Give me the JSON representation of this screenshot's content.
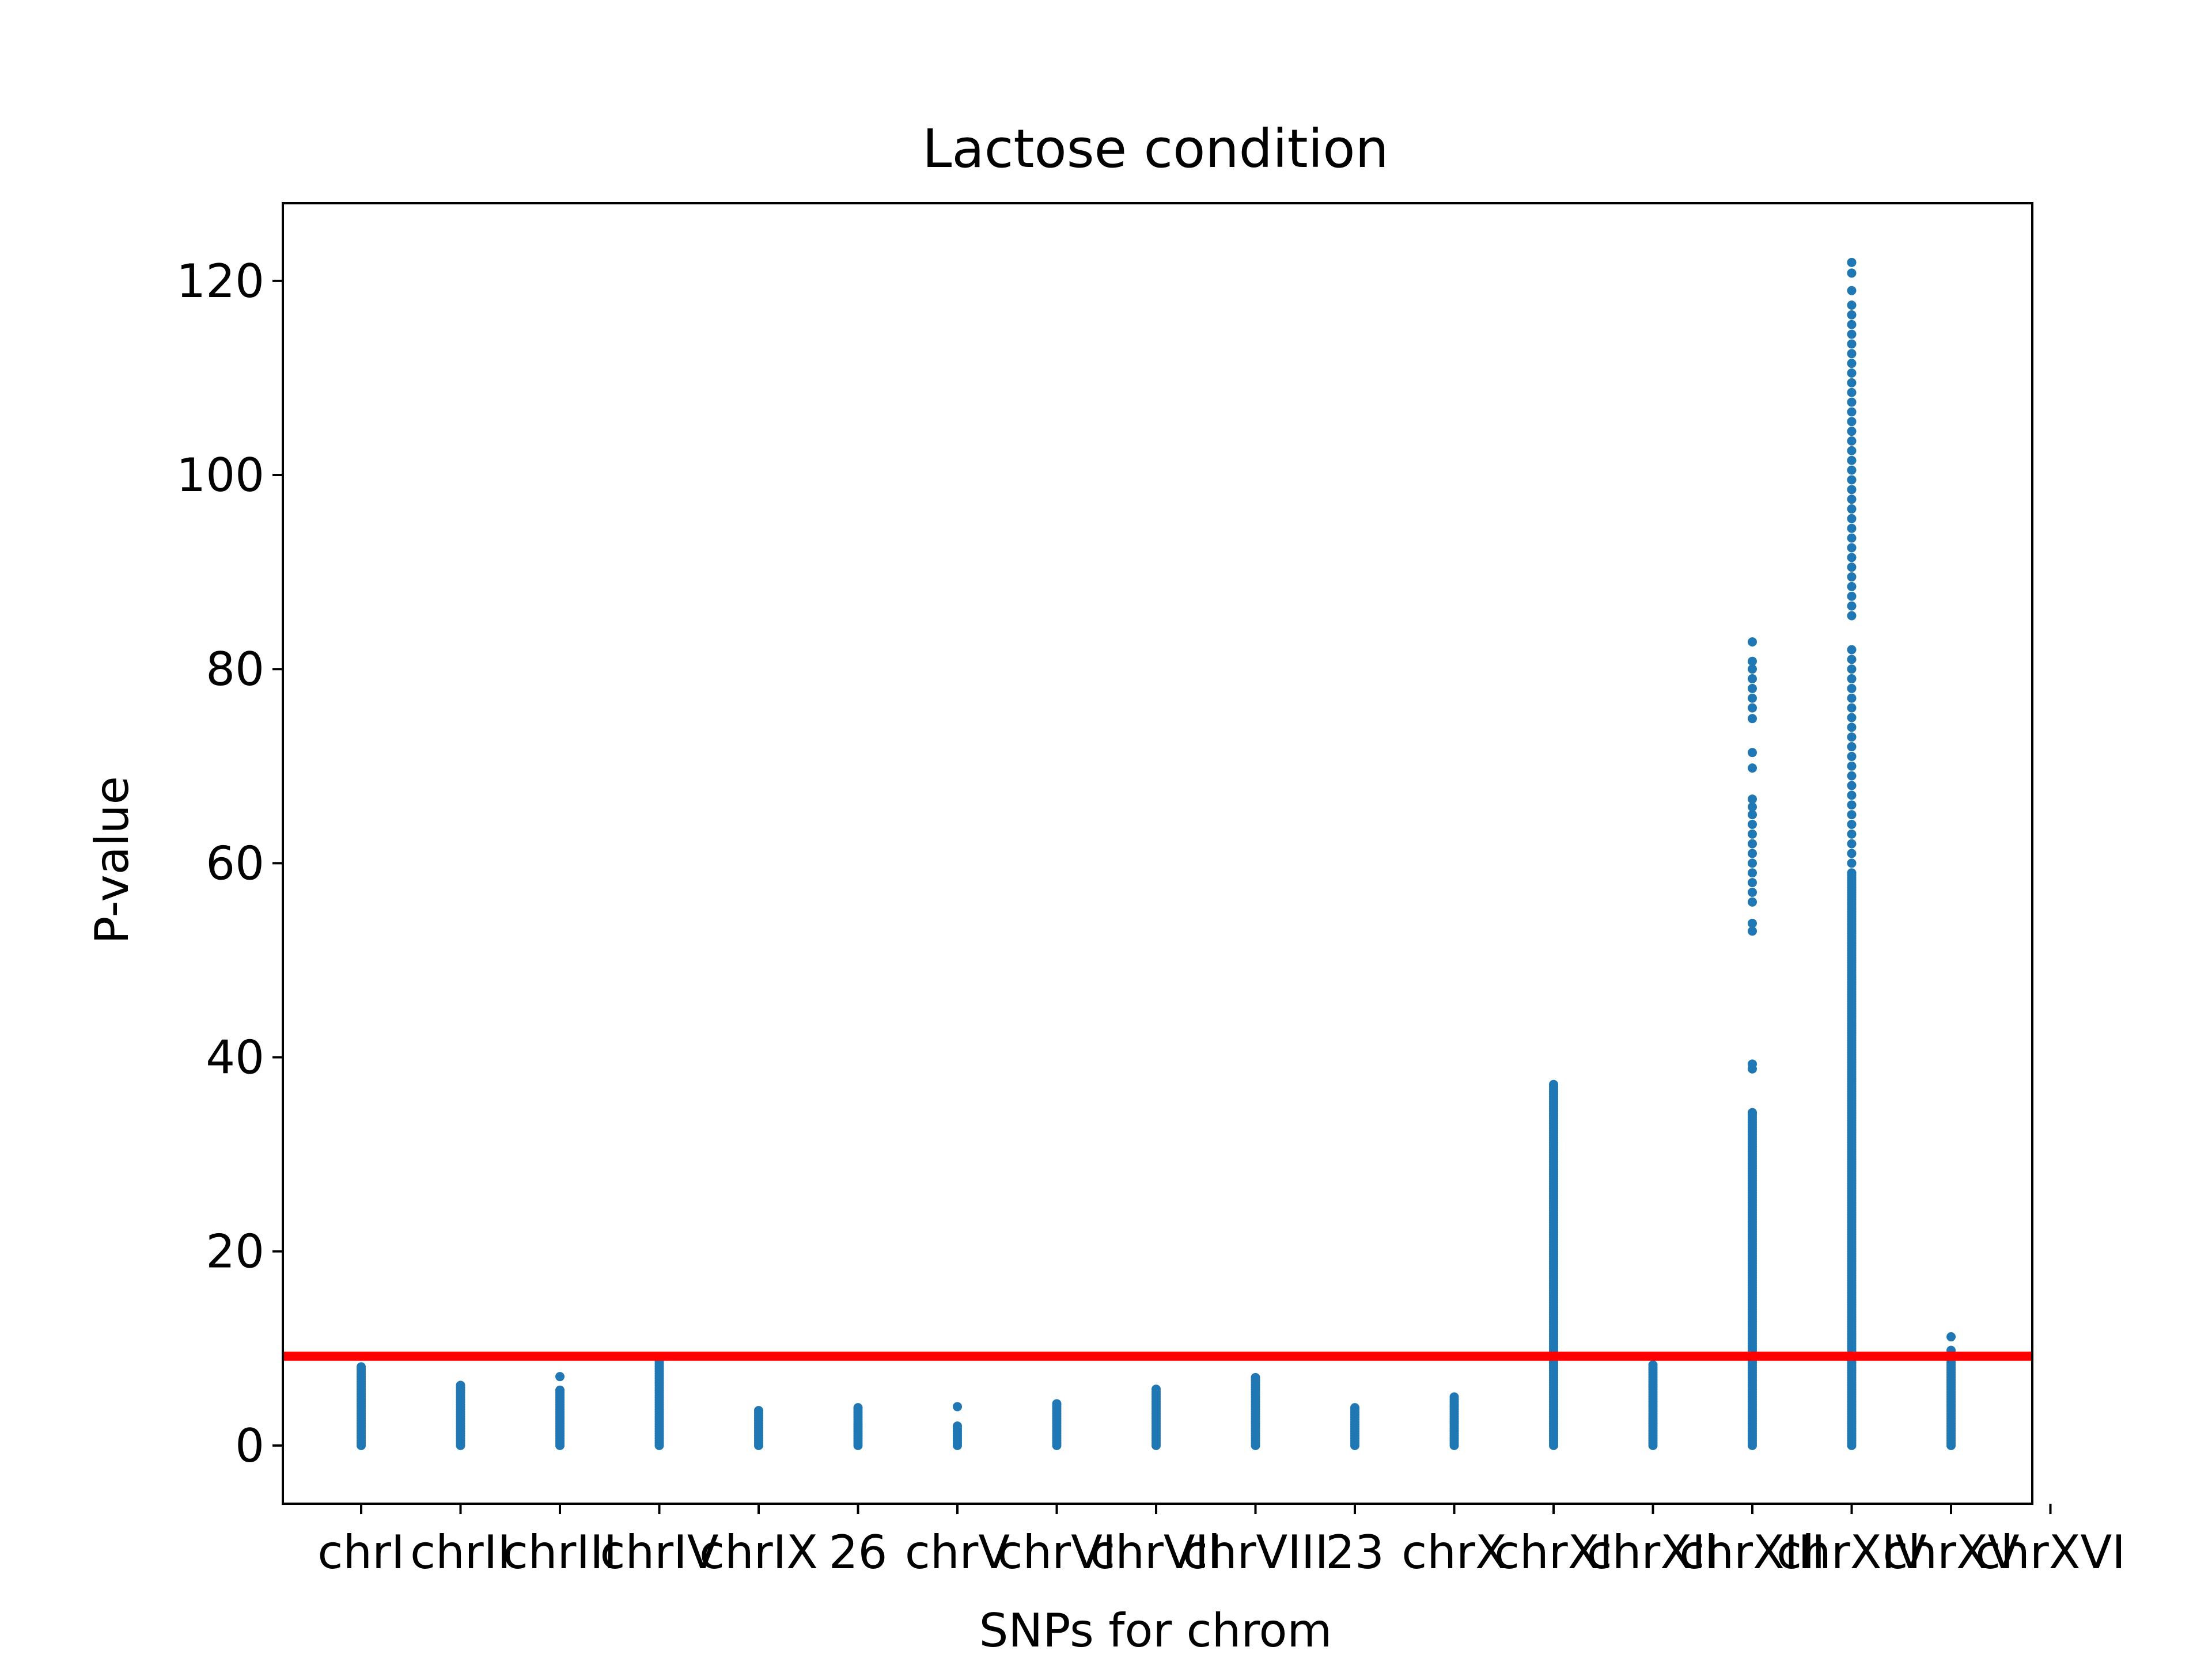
{
  "chart_data": {
    "type": "scatter",
    "title": "Lactose condition",
    "xlabel": "SNPs for chrom",
    "ylabel": "P-value",
    "ylim": [
      -6,
      128
    ],
    "yticks": [
      0,
      20,
      40,
      60,
      80,
      100,
      120
    ],
    "grid": false,
    "legend": "none",
    "categories": [
      "chrI",
      "chrII",
      "chrIII",
      "chrIV",
      "chrIX",
      "26",
      "chrV",
      "chrVI",
      "chrVII",
      "chrVIII",
      "23",
      "chrX",
      "chrXI",
      "chrXII",
      "chrXIII",
      "chrXIV",
      "chrXV",
      "chrXVI"
    ],
    "point_color": "#1f77b4",
    "threshold": {
      "value": 9.2,
      "color": "#ff0000"
    },
    "series": [
      {
        "category": "chrI",
        "min": 0,
        "max": 8.1,
        "outliers": []
      },
      {
        "category": "chrII",
        "min": 0,
        "max": 6.2,
        "outliers": []
      },
      {
        "category": "chrIII",
        "min": 0,
        "max": 5.7,
        "outliers": [
          7.1
        ]
      },
      {
        "category": "chrIV",
        "min": 0,
        "max": 8.9,
        "outliers": []
      },
      {
        "category": "chrIX",
        "min": 0,
        "max": 3.6,
        "outliers": []
      },
      {
        "category": "26",
        "min": 0,
        "max": 3.9,
        "outliers": []
      },
      {
        "category": "chrV",
        "min": 0,
        "max": 2.0,
        "outliers": [
          4.0
        ]
      },
      {
        "category": "chrVI",
        "min": 0,
        "max": 4.3,
        "outliers": []
      },
      {
        "category": "chrVII",
        "min": 0,
        "max": 5.8,
        "outliers": []
      },
      {
        "category": "chrVIII",
        "min": 0,
        "max": 7.0,
        "outliers": []
      },
      {
        "category": "23",
        "min": 0,
        "max": 3.9,
        "outliers": []
      },
      {
        "category": "chrX",
        "min": 0,
        "max": 5.0,
        "outliers": []
      },
      {
        "category": "chrXI",
        "min": 0,
        "max": 37.2,
        "outliers": []
      },
      {
        "category": "chrXII",
        "min": 0,
        "max": 8.3,
        "outliers": []
      },
      {
        "category": "chrXIII",
        "min": 0,
        "max": 34.3,
        "outliers": [
          38.8,
          39.3,
          53.0,
          53.8,
          56.0,
          57.0,
          58.0,
          59.0,
          60.0,
          61.0,
          62.0,
          63.0,
          64.0,
          65.0,
          65.8,
          66.6,
          69.8,
          71.4,
          74.9,
          76.0,
          77.0,
          78.0,
          79.0,
          80.0,
          80.8,
          82.8
        ]
      },
      {
        "category": "chrXIV",
        "min": 0,
        "max": 59.0,
        "outliers": [
          60.0,
          61.0,
          62.0,
          63.0,
          64.0,
          65.0,
          66.0,
          67.0,
          68.0,
          69.0,
          70.0,
          71.0,
          72.0,
          73.0,
          74.0,
          75.0,
          76.0,
          77.0,
          78.0,
          79.0,
          80.0,
          81.0,
          82.0,
          85.5,
          86.5,
          87.5,
          88.5,
          89.5,
          90.5,
          91.5,
          92.5,
          93.5,
          94.5,
          95.5,
          96.5,
          97.5,
          98.5,
          99.5,
          100.5,
          101.5,
          102.5,
          103.5,
          104.5,
          105.5,
          106.5,
          107.5,
          108.5,
          109.5,
          110.5,
          111.5,
          112.5,
          113.5,
          114.5,
          115.5,
          116.5,
          117.5,
          119.0,
          120.8,
          121.9
        ]
      },
      {
        "category": "chrXV",
        "min": 0,
        "max": 9.8,
        "outliers": [
          11.2
        ]
      }
    ]
  }
}
